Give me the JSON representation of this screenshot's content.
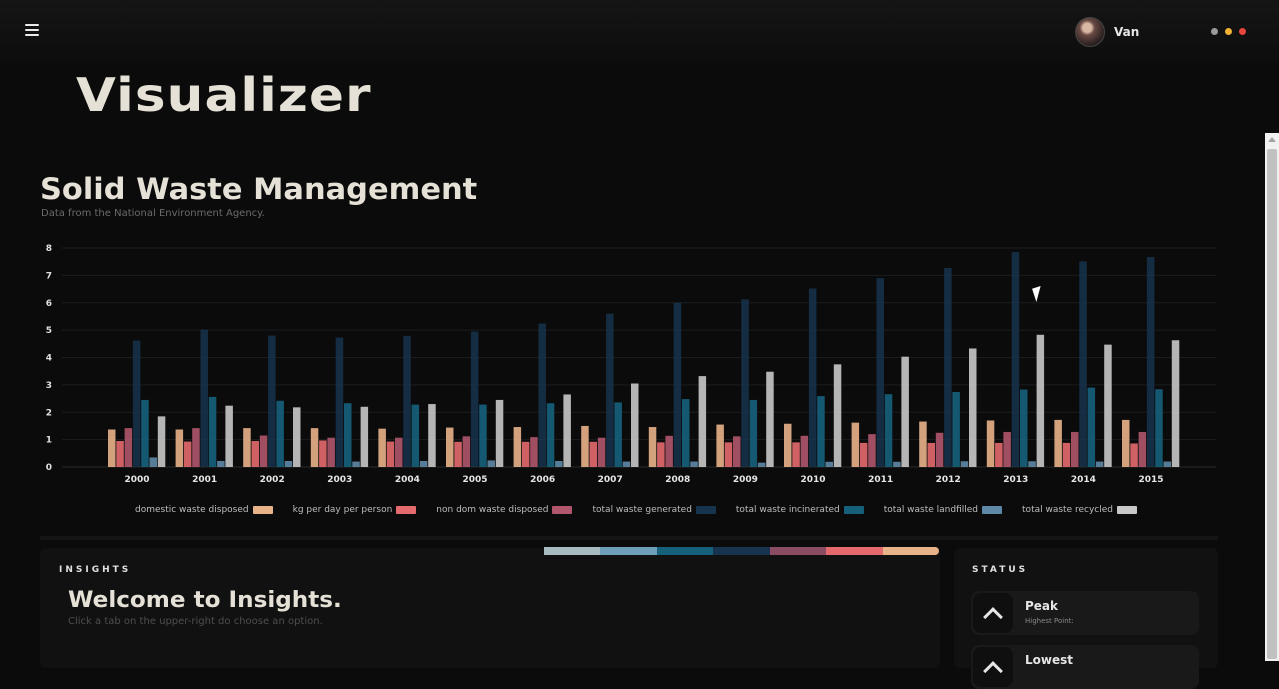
{
  "header": {
    "user_name": "Van",
    "window_dots": [
      "#9a9a9a",
      "#f2b233",
      "#e8453c"
    ]
  },
  "app": {
    "title": "Visualizer"
  },
  "chart_data": {
    "type": "bar",
    "title": "Solid Waste Management",
    "subtitle": "Data from the National Environment Agency.",
    "xlabel": "",
    "ylabel": "",
    "ylim": [
      0,
      8
    ],
    "yticks": [
      0,
      1,
      2,
      3,
      4,
      5,
      6,
      7,
      8
    ],
    "grid": true,
    "legend_position": "bottom",
    "categories": [
      "2000",
      "2001",
      "2002",
      "2003",
      "2004",
      "2005",
      "2006",
      "2007",
      "2008",
      "2009",
      "2010",
      "2011",
      "2012",
      "2013",
      "2014",
      "2015"
    ],
    "series": [
      {
        "name": "domestic waste disposed",
        "color": "#e9b38a",
        "values": [
          1.37,
          1.37,
          1.42,
          1.42,
          1.4,
          1.44,
          1.46,
          1.5,
          1.46,
          1.55,
          1.58,
          1.62,
          1.66,
          1.7,
          1.72,
          1.72
        ]
      },
      {
        "name": "kg per day per person",
        "color": "#e46a6e",
        "values": [
          0.95,
          0.93,
          0.95,
          0.97,
          0.93,
          0.92,
          0.92,
          0.92,
          0.9,
          0.9,
          0.9,
          0.88,
          0.88,
          0.88,
          0.88,
          0.86
        ]
      },
      {
        "name": "non dom waste disposed",
        "color": "#b0566d",
        "values": [
          1.42,
          1.42,
          1.15,
          1.07,
          1.07,
          1.12,
          1.09,
          1.07,
          1.14,
          1.12,
          1.14,
          1.2,
          1.25,
          1.28,
          1.28,
          1.28
        ]
      },
      {
        "name": "total waste generated",
        "color": "#16344d",
        "values": [
          4.62,
          5.02,
          4.8,
          4.73,
          4.79,
          4.95,
          5.24,
          5.6,
          6.0,
          6.12,
          6.52,
          6.9,
          7.27,
          7.85,
          7.51,
          7.67
        ]
      },
      {
        "name": "total waste incinerated",
        "color": "#16607c",
        "values": [
          2.45,
          2.56,
          2.42,
          2.33,
          2.28,
          2.28,
          2.33,
          2.36,
          2.48,
          2.45,
          2.59,
          2.66,
          2.74,
          2.83,
          2.9,
          2.84
        ]
      },
      {
        "name": "total waste landfilled",
        "color": "#5f88a6",
        "values": [
          0.35,
          0.22,
          0.22,
          0.2,
          0.22,
          0.24,
          0.22,
          0.2,
          0.2,
          0.16,
          0.19,
          0.19,
          0.21,
          0.21,
          0.2,
          0.2
        ]
      },
      {
        "name": "total waste recycled",
        "color": "#c8c8c8",
        "values": [
          1.85,
          2.24,
          2.18,
          2.2,
          2.3,
          2.45,
          2.65,
          3.05,
          3.32,
          3.48,
          3.75,
          4.03,
          4.33,
          4.83,
          4.47,
          4.63
        ]
      }
    ]
  },
  "insights": {
    "label": "INSIGHTS",
    "title": "Welcome to Insights.",
    "subtitle": "Click a tab on the upper-right do choose an option."
  },
  "status": {
    "label": "STATUS",
    "cards": [
      {
        "title": "Peak",
        "subtitle": "Highest Point:"
      },
      {
        "title": "Lowest",
        "subtitle": ""
      }
    ]
  },
  "color_strip": [
    "#a9bdc1",
    "#6d9fb8",
    "#16607c",
    "#16344d",
    "#8a4c63",
    "#e46a6e",
    "#e9b38a"
  ]
}
